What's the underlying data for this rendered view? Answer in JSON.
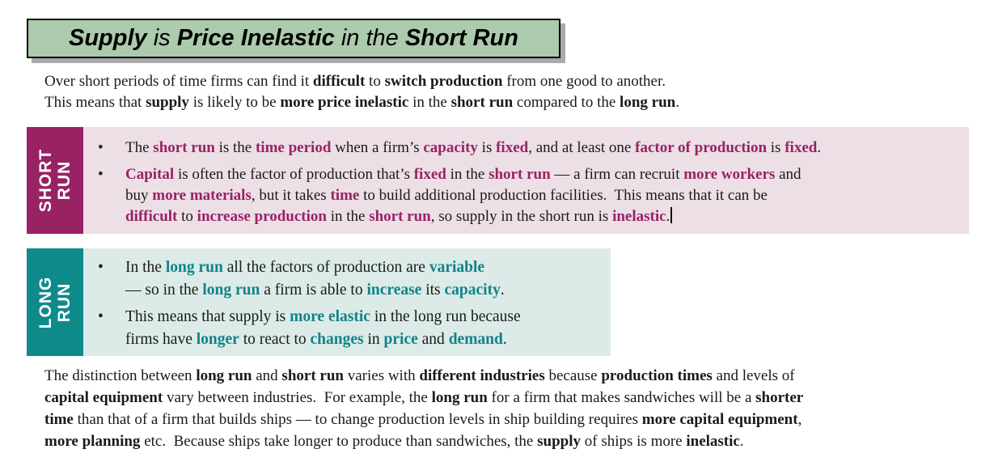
{
  "colors": {
    "text": "#1a1a1a",
    "title_bg": "#accbad",
    "title_border": "#000000",
    "title_shadow": "#a9a9a9",
    "short_run_accent": "#992265",
    "short_run_panel": "#eddfe6",
    "long_run_accent": "#118388",
    "long_run_sidebar": "#0f8a8b",
    "long_run_panel": "#dcebe8"
  },
  "glyphs": {
    "bullet": "•"
  },
  "title": {
    "segments": [
      {
        "t": "Supply",
        "b": true
      },
      {
        "t": " is "
      },
      {
        "t": "Price Inelastic",
        "b": true
      },
      {
        "t": " in the "
      },
      {
        "t": "Short Run",
        "b": true
      }
    ]
  },
  "intro": {
    "segments": [
      {
        "t": "Over short periods of time firms can find it "
      },
      {
        "t": "difficult",
        "b": true
      },
      {
        "t": " to "
      },
      {
        "t": "switch production",
        "b": true
      },
      {
        "t": " from one good to another.\nThis means that "
      },
      {
        "t": "supply",
        "b": true
      },
      {
        "t": " is likely to be "
      },
      {
        "t": "more price inelastic",
        "b": true
      },
      {
        "t": " in the "
      },
      {
        "t": "short run",
        "b": true
      },
      {
        "t": " compared to the "
      },
      {
        "t": "long run",
        "b": true
      },
      {
        "t": "."
      }
    ]
  },
  "short_run": {
    "label_lines": [
      "SHORT",
      "RUN"
    ],
    "bullets": [
      {
        "segments": [
          {
            "t": "The "
          },
          {
            "t": "short run",
            "c": true
          },
          {
            "t": " is the "
          },
          {
            "t": "time period",
            "c": true
          },
          {
            "t": " when a firm’s "
          },
          {
            "t": "capacity",
            "c": true
          },
          {
            "t": " is "
          },
          {
            "t": "fixed",
            "c": true
          },
          {
            "t": ", and at least one "
          },
          {
            "t": "factor of production",
            "c": true
          },
          {
            "t": " is "
          },
          {
            "t": "fixed",
            "c": true
          },
          {
            "t": "."
          }
        ]
      },
      {
        "segments": [
          {
            "t": "Capital",
            "c": true
          },
          {
            "t": " is often the factor of production that’s "
          },
          {
            "t": "fixed",
            "c": true
          },
          {
            "t": " in the "
          },
          {
            "t": "short run",
            "c": true
          },
          {
            "t": " — a firm can recruit "
          },
          {
            "t": "more workers",
            "c": true
          },
          {
            "t": " and\nbuy "
          },
          {
            "t": "more materials",
            "c": true
          },
          {
            "t": ", but it takes "
          },
          {
            "t": "time",
            "c": true
          },
          {
            "t": " to build additional production facilities.  This means that it can be\n"
          },
          {
            "t": "difficult",
            "c": true
          },
          {
            "t": " to "
          },
          {
            "t": "increase production",
            "c": true
          },
          {
            "t": " in the "
          },
          {
            "t": "short run",
            "c": true
          },
          {
            "t": ", so supply in the short run is "
          },
          {
            "t": "inelastic",
            "c": true
          },
          {
            "t": "."
          },
          {
            "caret": true
          }
        ]
      }
    ]
  },
  "long_run": {
    "label_lines": [
      "LONG",
      "RUN"
    ],
    "bullets": [
      {
        "segments": [
          {
            "t": "In the "
          },
          {
            "t": "long run",
            "c": true
          },
          {
            "t": " all the factors of production are "
          },
          {
            "t": "variable",
            "c": true
          },
          {
            "t": "\n— so in the "
          },
          {
            "t": "long run",
            "c": true
          },
          {
            "t": " a firm is able to "
          },
          {
            "t": "increase",
            "c": true
          },
          {
            "t": " its "
          },
          {
            "t": "capacity",
            "c": true
          },
          {
            "t": "."
          }
        ]
      },
      {
        "segments": [
          {
            "t": "This means that supply is "
          },
          {
            "t": "more elastic",
            "c": true
          },
          {
            "t": " in the long run because\nfirms have "
          },
          {
            "t": "longer",
            "c": true
          },
          {
            "t": " to react to "
          },
          {
            "t": "changes",
            "c": true
          },
          {
            "t": " in "
          },
          {
            "t": "price",
            "c": true
          },
          {
            "t": " and "
          },
          {
            "t": "demand",
            "c": true
          },
          {
            "t": "."
          }
        ]
      }
    ]
  },
  "footer": {
    "segments": [
      {
        "t": "The distinction between "
      },
      {
        "t": "long run",
        "b": true
      },
      {
        "t": " and "
      },
      {
        "t": "short run",
        "b": true
      },
      {
        "t": " varies with "
      },
      {
        "t": "different industries",
        "b": true
      },
      {
        "t": " because "
      },
      {
        "t": "production times",
        "b": true
      },
      {
        "t": " and levels of\n"
      },
      {
        "t": "capital equipment",
        "b": true
      },
      {
        "t": " vary between industries.  For example, the "
      },
      {
        "t": "long run",
        "b": true
      },
      {
        "t": " for a firm that makes sandwiches will be a "
      },
      {
        "t": "shorter\ntime",
        "b": true
      },
      {
        "t": " than that of a firm that builds ships — to change production levels in ship building requires "
      },
      {
        "t": "more capital equipment",
        "b": true
      },
      {
        "t": ",\n"
      },
      {
        "t": "more planning",
        "b": true
      },
      {
        "t": " etc.  Because ships take longer to produce than sandwiches, the "
      },
      {
        "t": "supply",
        "b": true
      },
      {
        "t": " of ships is more "
      },
      {
        "t": "inelastic",
        "b": true
      },
      {
        "t": "."
      }
    ]
  }
}
